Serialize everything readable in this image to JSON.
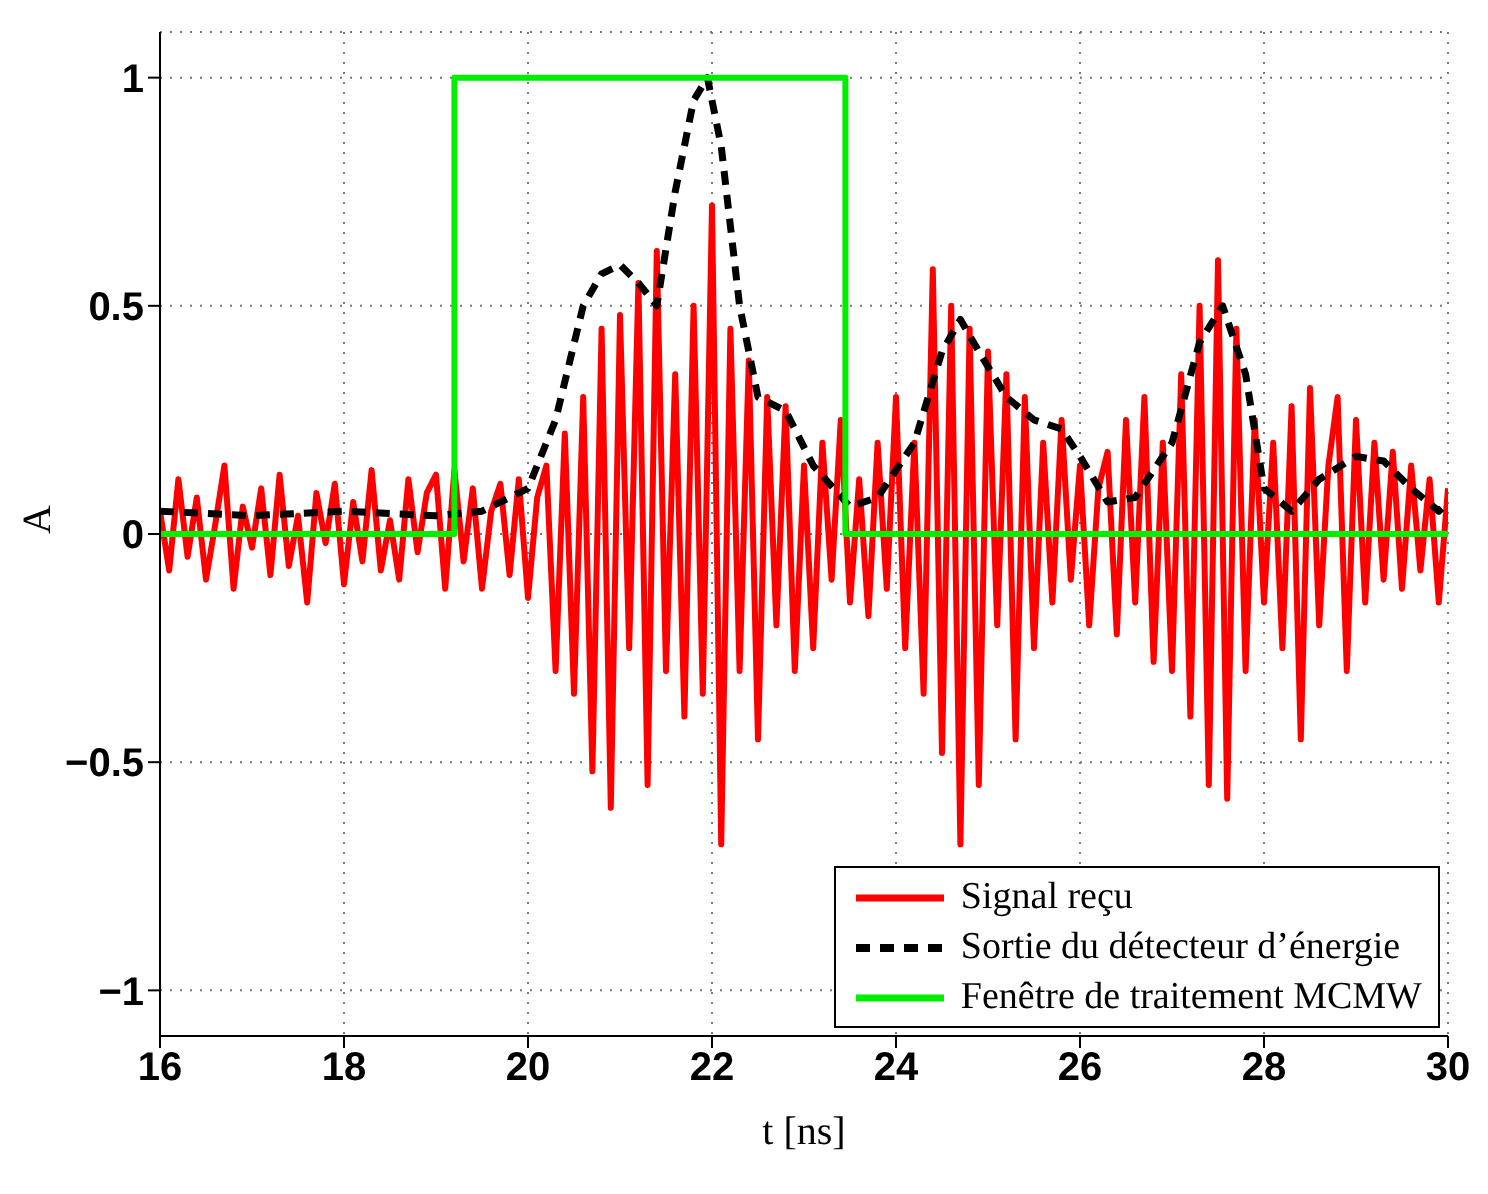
{
  "chart_data": {
    "type": "line",
    "xlabel": "t [ns]",
    "ylabel": "A",
    "xlim": [
      16,
      30
    ],
    "xticks": [
      16,
      18,
      20,
      22,
      24,
      26,
      28,
      30
    ],
    "ylim": [
      -1.1,
      1.1
    ],
    "yticks": [
      -1,
      -0.5,
      0,
      0.5,
      1
    ],
    "grid": true,
    "legend": "bottom right",
    "series": [
      {
        "name": "Signal reçu",
        "color": "#ff0000",
        "line_style": "solid",
        "x": [
          16.0,
          16.1,
          16.2,
          16.3,
          16.4,
          16.5,
          16.6,
          16.7,
          16.8,
          16.9,
          17.0,
          17.1,
          17.2,
          17.3,
          17.4,
          17.5,
          17.6,
          17.7,
          17.8,
          17.9,
          18.0,
          18.1,
          18.2,
          18.3,
          18.4,
          18.5,
          18.6,
          18.7,
          18.8,
          18.9,
          19.0,
          19.1,
          19.2,
          19.3,
          19.4,
          19.5,
          19.6,
          19.7,
          19.8,
          19.9,
          20.0,
          20.1,
          20.2,
          20.3,
          20.4,
          20.5,
          20.6,
          20.7,
          20.8,
          20.9,
          21.0,
          21.1,
          21.2,
          21.3,
          21.4,
          21.5,
          21.6,
          21.7,
          21.8,
          21.9,
          22.0,
          22.1,
          22.2,
          22.3,
          22.4,
          22.5,
          22.6,
          22.7,
          22.8,
          22.9,
          23.0,
          23.1,
          23.2,
          23.3,
          23.4,
          23.5,
          23.6,
          23.7,
          23.8,
          23.9,
          24.0,
          24.1,
          24.2,
          24.3,
          24.4,
          24.5,
          24.6,
          24.7,
          24.8,
          24.9,
          25.0,
          25.1,
          25.2,
          25.3,
          25.4,
          25.5,
          25.6,
          25.7,
          25.8,
          25.9,
          26.0,
          26.1,
          26.2,
          26.3,
          26.4,
          26.5,
          26.6,
          26.7,
          26.8,
          26.9,
          27.0,
          27.1,
          27.2,
          27.3,
          27.4,
          27.5,
          27.6,
          27.7,
          27.8,
          27.9,
          28.0,
          28.1,
          28.2,
          28.3,
          28.4,
          28.5,
          28.6,
          28.7,
          28.8,
          28.9,
          29.0,
          29.1,
          29.2,
          29.3,
          29.4,
          29.5,
          29.6,
          29.7,
          29.8,
          29.9,
          30.0
        ],
        "values": [
          0.05,
          -0.08,
          0.12,
          -0.05,
          0.08,
          -0.1,
          0.02,
          0.15,
          -0.12,
          0.06,
          -0.03,
          0.1,
          -0.09,
          0.13,
          -0.07,
          0.04,
          -0.15,
          0.09,
          -0.02,
          0.11,
          -0.11,
          0.07,
          -0.06,
          0.14,
          -0.08,
          0.03,
          -0.1,
          0.12,
          -0.04,
          0.09,
          0.13,
          -0.12,
          0.14,
          -0.06,
          0.1,
          -0.12,
          0.05,
          0.11,
          -0.09,
          0.12,
          -0.14,
          0.08,
          0.15,
          -0.3,
          0.22,
          -0.35,
          0.3,
          -0.52,
          0.45,
          -0.6,
          0.48,
          -0.25,
          0.55,
          -0.55,
          0.62,
          -0.3,
          0.35,
          -0.4,
          0.5,
          -0.35,
          0.72,
          -0.68,
          0.45,
          -0.3,
          0.38,
          -0.45,
          0.3,
          -0.2,
          0.28,
          -0.3,
          0.15,
          -0.25,
          0.2,
          -0.1,
          0.25,
          -0.15,
          0.12,
          -0.18,
          0.2,
          -0.12,
          0.3,
          -0.25,
          0.2,
          -0.35,
          0.58,
          -0.48,
          0.5,
          -0.68,
          0.45,
          -0.55,
          0.4,
          -0.2,
          0.35,
          -0.45,
          0.3,
          -0.25,
          0.2,
          -0.15,
          0.25,
          -0.1,
          0.15,
          -0.2,
          0.1,
          0.18,
          -0.22,
          0.25,
          -0.15,
          0.3,
          -0.28,
          0.2,
          -0.3,
          0.35,
          -0.4,
          0.5,
          -0.55,
          0.6,
          -0.58,
          0.45,
          -0.3,
          0.25,
          -0.15,
          0.2,
          -0.25,
          0.28,
          -0.45,
          0.32,
          -0.2,
          0.15,
          0.3,
          -0.3,
          0.25,
          -0.15,
          0.2,
          -0.1,
          0.18,
          -0.12,
          0.15,
          -0.08,
          0.12,
          -0.15,
          0.1
        ]
      },
      {
        "name": "Sortie du détecteur d’énergie",
        "color": "#000000",
        "line_style": "dashed",
        "x": [
          16,
          17,
          18,
          19,
          19.5,
          20,
          20.3,
          20.6,
          20.8,
          21,
          21.2,
          21.4,
          21.6,
          21.8,
          21.95,
          22.1,
          22.3,
          22.5,
          22.8,
          23.1,
          23.5,
          23.8,
          24.2,
          24.5,
          24.7,
          24.9,
          25.2,
          25.5,
          25.8,
          26,
          26.3,
          26.6,
          27,
          27.3,
          27.55,
          27.8,
          28,
          28.3,
          28.6,
          29,
          29.3,
          29.6,
          29.9,
          30
        ],
        "values": [
          0.05,
          0.04,
          0.05,
          0.04,
          0.05,
          0.1,
          0.25,
          0.5,
          0.57,
          0.59,
          0.55,
          0.5,
          0.75,
          0.95,
          1.0,
          0.85,
          0.5,
          0.3,
          0.27,
          0.15,
          0.06,
          0.08,
          0.2,
          0.4,
          0.47,
          0.4,
          0.3,
          0.25,
          0.23,
          0.17,
          0.07,
          0.08,
          0.2,
          0.42,
          0.5,
          0.35,
          0.1,
          0.05,
          0.12,
          0.17,
          0.16,
          0.1,
          0.05,
          0.07
        ]
      },
      {
        "name": "Fenêtre de traitement MCMW",
        "color": "#00ee00",
        "type": "step",
        "line_style": "solid",
        "x": [
          16,
          19.2,
          23.45,
          30
        ],
        "values": [
          0,
          1,
          0,
          0
        ]
      }
    ]
  }
}
